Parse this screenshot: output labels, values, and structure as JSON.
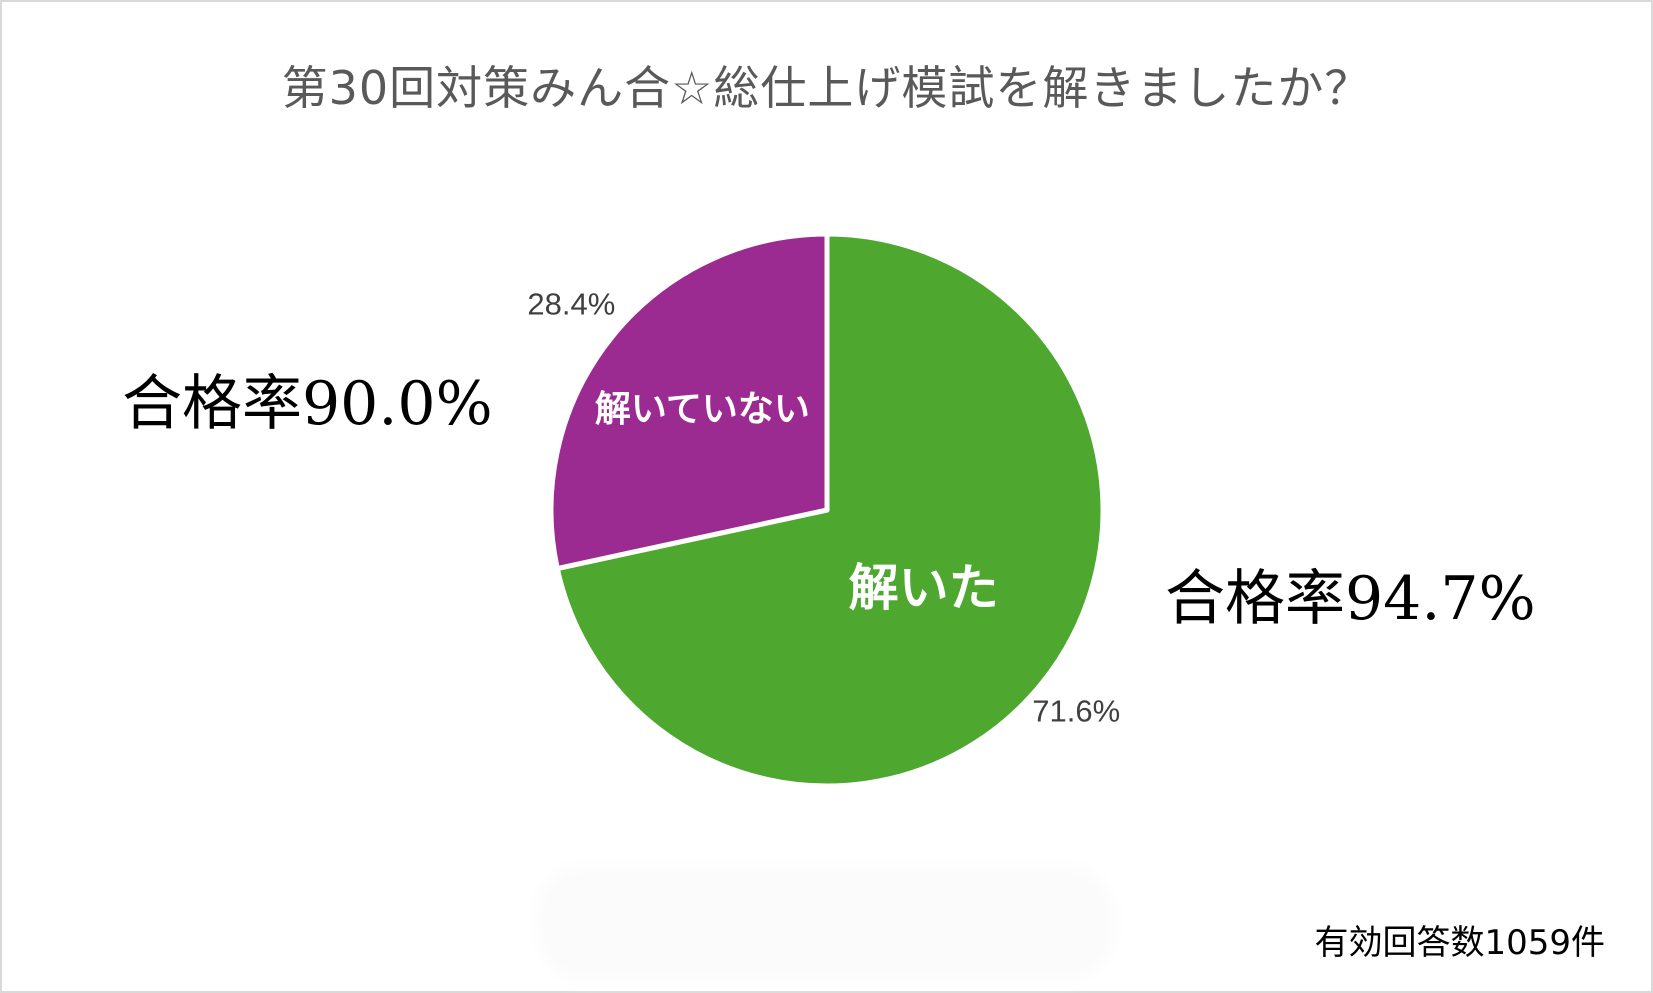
{
  "chart_data": {
    "type": "pie",
    "title": "第30回対策みん合☆総仕上げ模試を解きましたか？",
    "slices": [
      {
        "label": "解いた",
        "value": 71.6,
        "value_label": "71.6%",
        "color": "#4ea72e"
      },
      {
        "label": "解いていない",
        "value": 28.4,
        "value_label": "28.4%",
        "color": "#9c2b91"
      }
    ],
    "annotations": {
      "pass_rate_not_solved": "合格率90.0%",
      "pass_rate_solved": "合格率94.7%",
      "responses": "有効回答数1059件"
    },
    "start_angle": "12 o'clock",
    "direction": "clockwise",
    "slice_border_color": "#ffffff"
  }
}
